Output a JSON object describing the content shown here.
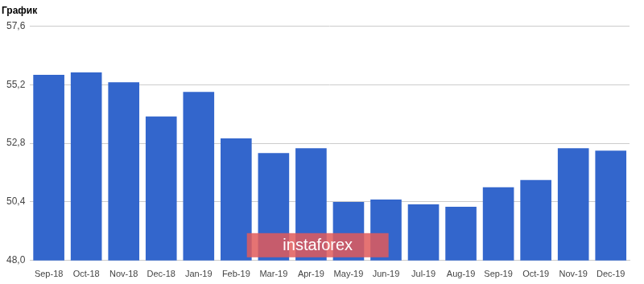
{
  "chart_data": {
    "type": "bar",
    "title": "График",
    "categories": [
      "Sep-18",
      "Oct-18",
      "Nov-18",
      "Dec-18",
      "Jan-19",
      "Feb-19",
      "Mar-19",
      "Apr-19",
      "May-19",
      "Jun-19",
      "Jul-19",
      "Aug-19",
      "Sep-19",
      "Oct-19",
      "Nov-19",
      "Dec-19"
    ],
    "values": [
      55.6,
      55.7,
      55.3,
      53.9,
      54.9,
      53.0,
      52.4,
      52.6,
      50.4,
      50.5,
      50.3,
      50.2,
      51.0,
      51.3,
      52.6,
      52.5
    ],
    "color": "#3366cc",
    "ylim": [
      48.0,
      57.6
    ],
    "yticks": [
      {
        "value": 48.0,
        "label": "48,0"
      },
      {
        "value": 50.4,
        "label": "50,4"
      },
      {
        "value": 52.8,
        "label": "52,8"
      },
      {
        "value": 55.2,
        "label": "55,2"
      },
      {
        "value": 57.6,
        "label": "57,6"
      }
    ],
    "grid": true,
    "annotations": [
      "instaforex"
    ]
  }
}
